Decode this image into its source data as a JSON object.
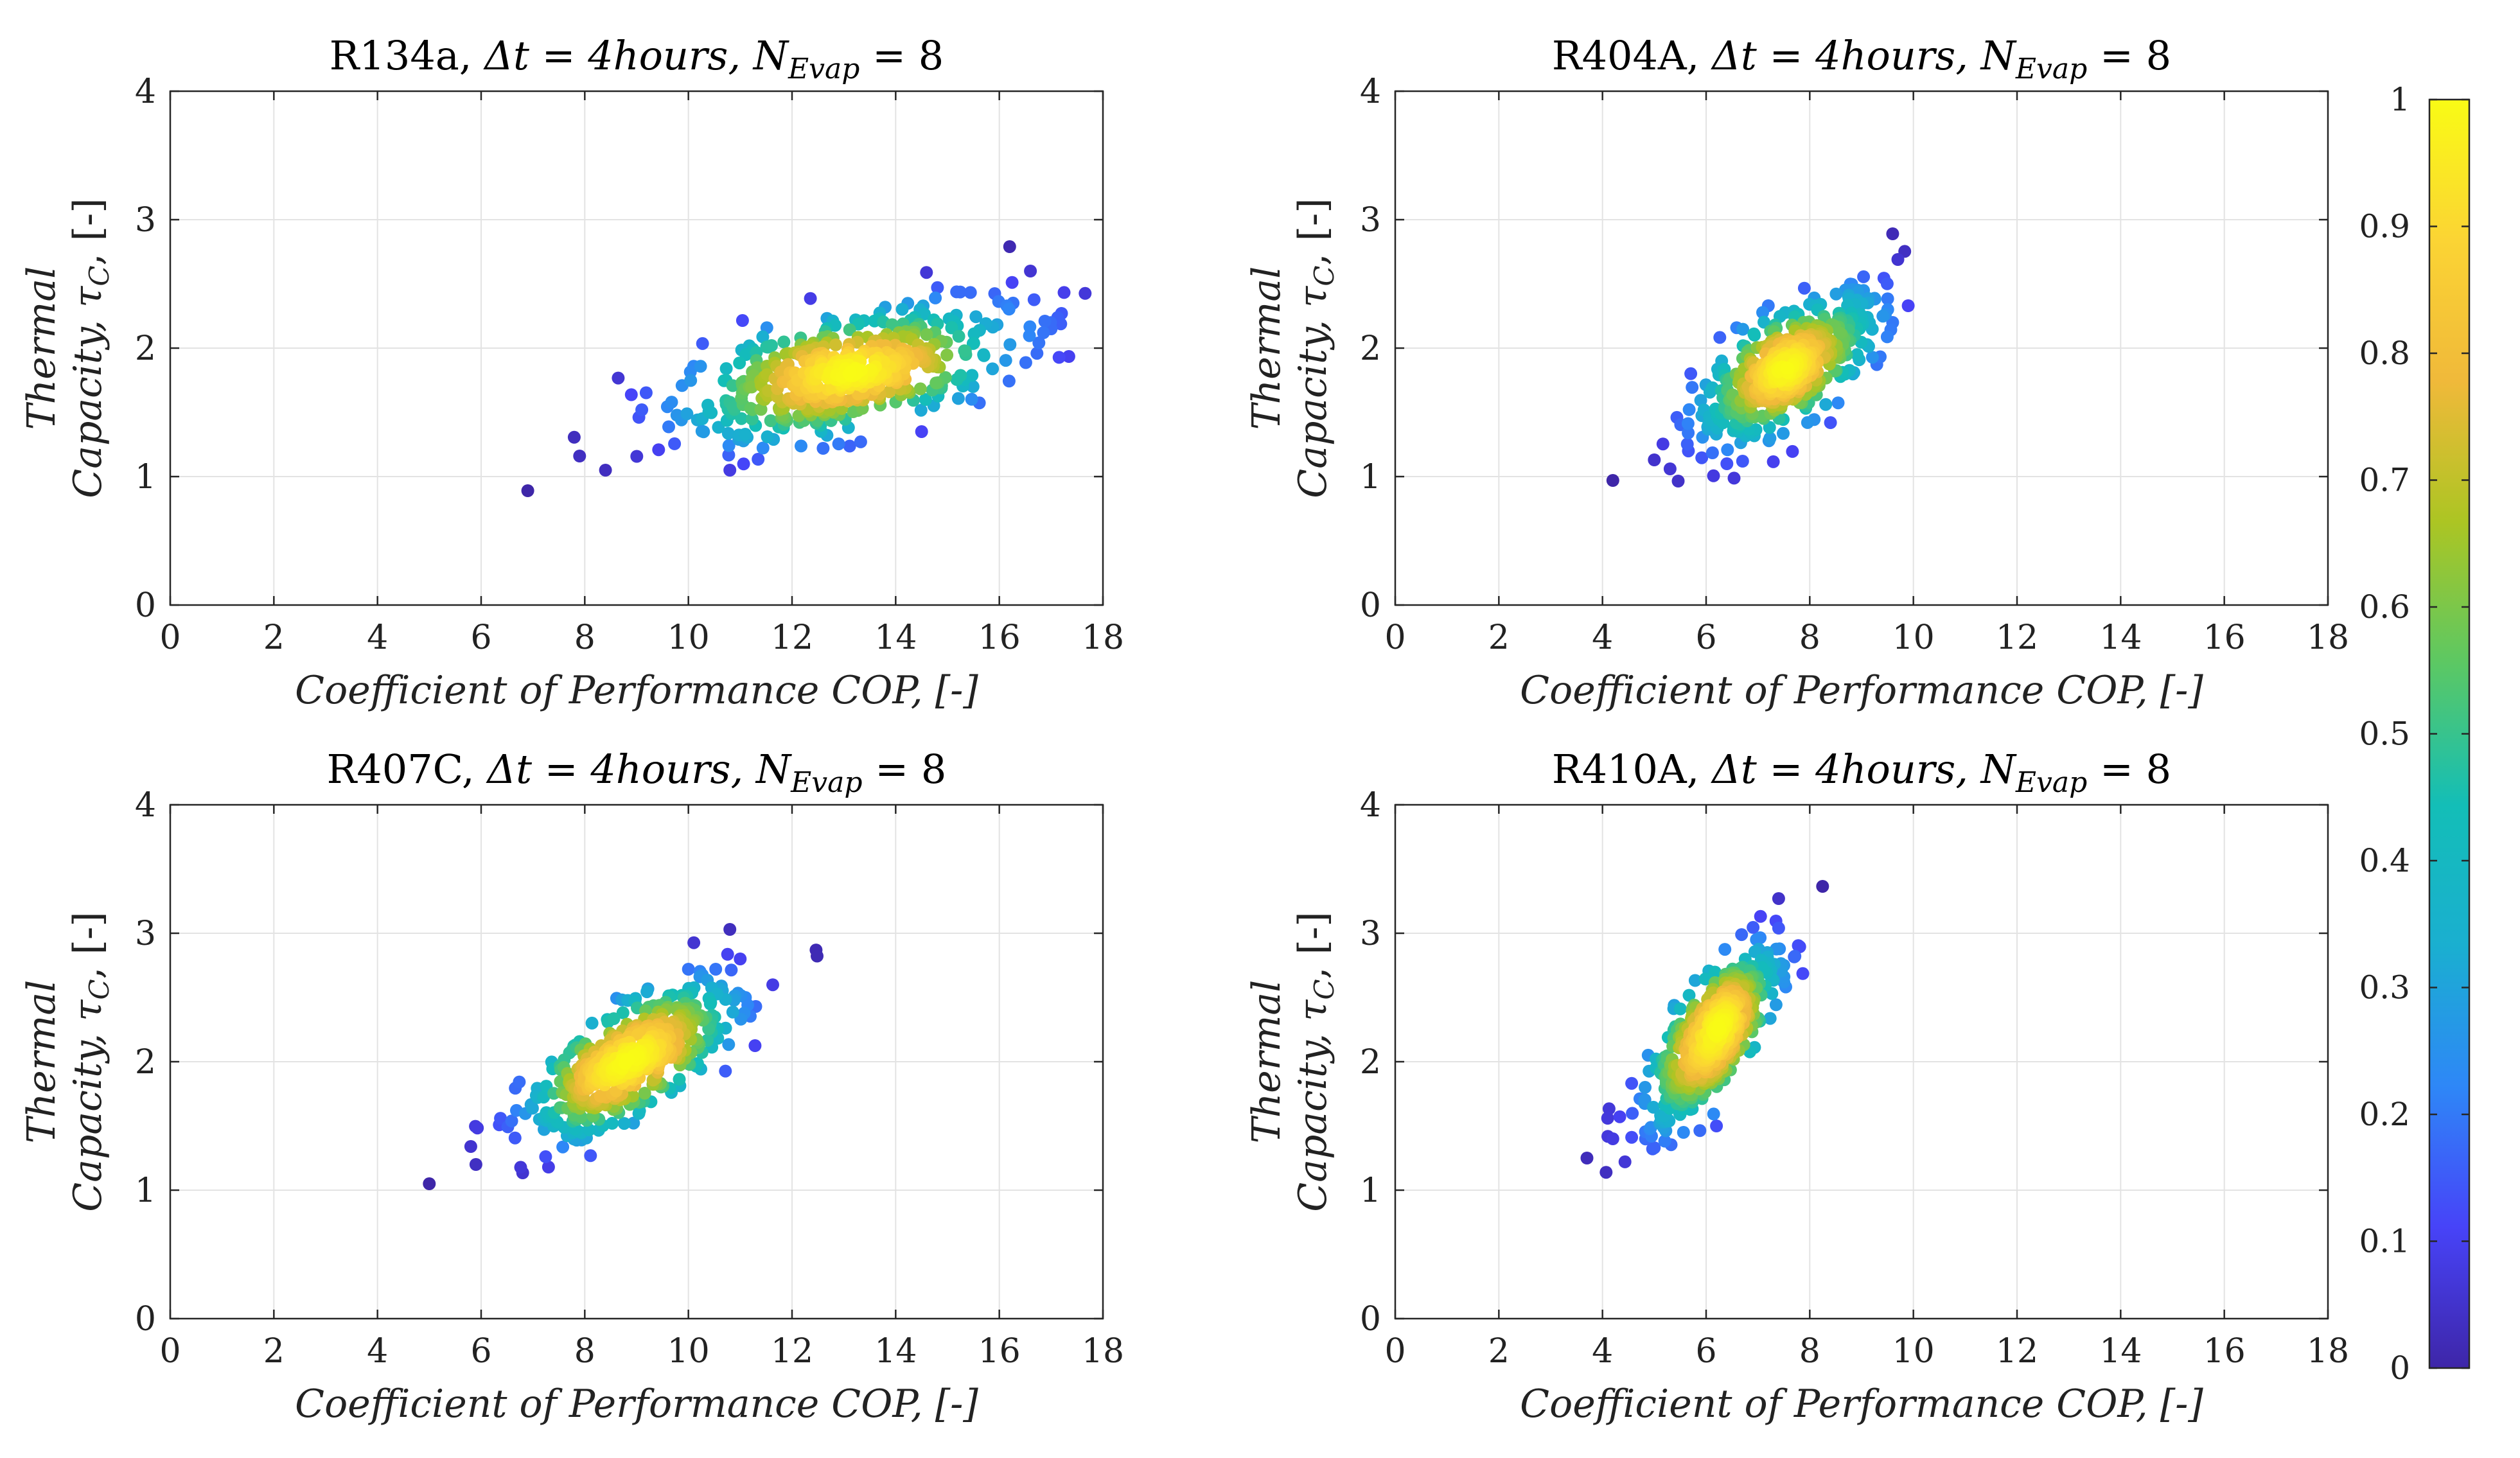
{
  "figure": {
    "colormap": [
      "#3e26a8",
      "#4743f8",
      "#2e87f7",
      "#1aafd0",
      "#13beb7",
      "#5cc863",
      "#acc523",
      "#f0b93a",
      "#fbd434",
      "#f9fb15"
    ],
    "colorbar": {
      "min": 0,
      "max": 1,
      "ticks": [
        "0",
        "0.1",
        "0.2",
        "0.3",
        "0.4",
        "0.5",
        "0.6",
        "0.7",
        "0.8",
        "0.9",
        "1"
      ]
    }
  },
  "chart_data": [
    {
      "type": "scatter",
      "title": {
        "prefix": "R134a, ",
        "delta_t": "Δt = 4hours",
        "n_label": "N",
        "n_sub": "Evap",
        "n_value": " = 8"
      },
      "xlabel": "Coefficient of Performance COP, [-]",
      "ylabel_line1": "Thermal",
      "ylabel_line2_main": "Capacity, τ",
      "ylabel_line2_sub": "C",
      "ylabel_line2_rest": ", [-]",
      "xlim": [
        0,
        18
      ],
      "ylim": [
        0,
        4
      ],
      "xticks": [
        0,
        2,
        4,
        6,
        8,
        10,
        12,
        14,
        16,
        18
      ],
      "yticks": [
        0,
        1,
        2,
        3,
        4
      ],
      "grid": true,
      "cluster": {
        "cx": 13.0,
        "cy": 1.8,
        "sx": 1.6,
        "sy": 0.26,
        "rho": 0.55
      },
      "outliers": [
        [
          6.9,
          0.89
        ],
        [
          7.9,
          1.16
        ],
        [
          8.4,
          1.05
        ],
        [
          9.1,
          1.52
        ],
        [
          10.8,
          1.05
        ],
        [
          16.2,
          2.79
        ],
        [
          16.6,
          2.6
        ],
        [
          17.0,
          2.15
        ],
        [
          17.2,
          2.27
        ],
        [
          14.5,
          1.35
        ],
        [
          12.6,
          1.22
        ]
      ]
    },
    {
      "type": "scatter",
      "title": {
        "prefix": "R404A, ",
        "delta_t": "Δt = 4hours",
        "n_label": "N",
        "n_sub": "Evap",
        "n_value": " = 8"
      },
      "xlabel": "Coefficient of Performance COP, [-]",
      "ylabel_line1": "Thermal",
      "ylabel_line2_main": "Capacity, τ",
      "ylabel_line2_sub": "C",
      "ylabel_line2_rest": ", [-]",
      "xlim": [
        0,
        18
      ],
      "ylim": [
        0,
        4
      ],
      "xticks": [
        0,
        2,
        4,
        6,
        8,
        10,
        12,
        14,
        16,
        18
      ],
      "yticks": [
        0,
        1,
        2,
        3,
        4
      ],
      "grid": true,
      "cluster": {
        "cx": 7.6,
        "cy": 1.85,
        "sx": 0.9,
        "sy": 0.3,
        "rho": 0.75
      },
      "outliers": [
        [
          4.2,
          0.97
        ],
        [
          5.0,
          1.13
        ],
        [
          6.4,
          1.1
        ],
        [
          9.6,
          2.89
        ],
        [
          9.7,
          2.69
        ],
        [
          9.9,
          2.33
        ],
        [
          9.6,
          2.2
        ],
        [
          8.4,
          1.42
        ],
        [
          7.2,
          2.33
        ]
      ]
    },
    {
      "type": "scatter",
      "title": {
        "prefix": "R407C, ",
        "delta_t": "Δt = 4hours",
        "n_label": "N",
        "n_sub": "Evap",
        "n_value": " = 8"
      },
      "xlabel": "Coefficient of Performance COP, [-]",
      "ylabel_line1": "Thermal",
      "ylabel_line2_main": "Capacity, τ",
      "ylabel_line2_sub": "C",
      "ylabel_line2_rest": ", [-]",
      "xlim": [
        0,
        18
      ],
      "ylim": [
        0,
        4
      ],
      "xticks": [
        0,
        2,
        4,
        6,
        8,
        10,
        12,
        14,
        16,
        18
      ],
      "yticks": [
        0,
        1,
        2,
        3,
        4
      ],
      "grid": true,
      "cluster": {
        "cx": 8.9,
        "cy": 2.0,
        "sx": 1.0,
        "sy": 0.3,
        "rho": 0.75
      },
      "outliers": [
        [
          5.0,
          1.05
        ],
        [
          5.8,
          1.34
        ],
        [
          5.9,
          1.2
        ],
        [
          7.3,
          1.18
        ],
        [
          10.8,
          3.03
        ],
        [
          11.0,
          2.8
        ],
        [
          11.3,
          2.43
        ],
        [
          11.1,
          2.5
        ],
        [
          10.0,
          2.72
        ]
      ]
    },
    {
      "type": "scatter",
      "title": {
        "prefix": "R410A, ",
        "delta_t": "Δt = 4hours",
        "n_label": "N",
        "n_sub": "Evap",
        "n_value": " = 8"
      },
      "xlabel": "Coefficient of Performance COP, [-]",
      "ylabel_line1": "Thermal",
      "ylabel_line2_main": "Capacity, τ",
      "ylabel_line2_sub": "C",
      "ylabel_line2_rest": ", [-]",
      "xlim": [
        0,
        18
      ],
      "ylim": [
        0,
        4
      ],
      "xticks": [
        0,
        2,
        4,
        6,
        8,
        10,
        12,
        14,
        16,
        18
      ],
      "yticks": [
        0,
        1,
        2,
        3,
        4
      ],
      "grid": true,
      "cluster": {
        "cx": 6.1,
        "cy": 2.2,
        "sx": 0.65,
        "sy": 0.35,
        "rho": 0.78
      },
      "outliers": [
        [
          3.7,
          1.25
        ],
        [
          4.2,
          1.4
        ],
        [
          5.0,
          1.33
        ],
        [
          7.4,
          3.27
        ],
        [
          7.4,
          3.04
        ],
        [
          7.5,
          2.62
        ],
        [
          7.5,
          2.75
        ],
        [
          6.2,
          1.5
        ],
        [
          4.1,
          1.56
        ]
      ]
    }
  ]
}
